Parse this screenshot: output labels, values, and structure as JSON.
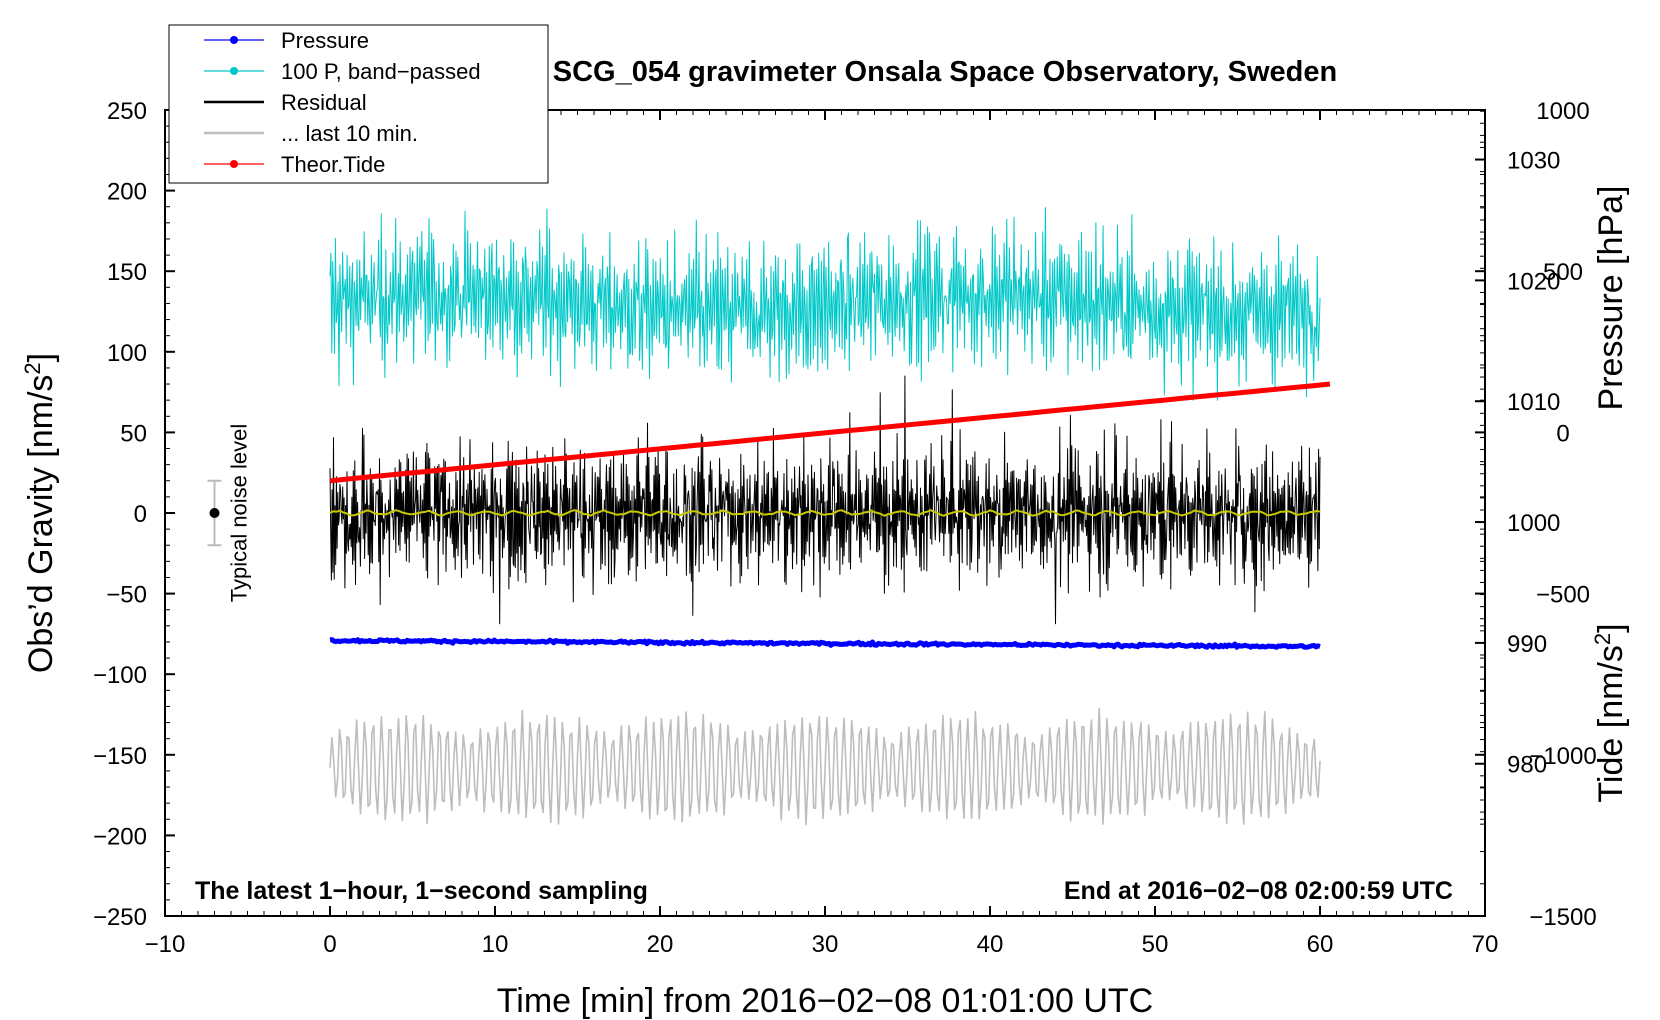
{
  "chart_data": {
    "type": "line",
    "title": "SCG_054 gravimeter Onsala Space Observatory, Sweden",
    "xlabel": "Time [min] from 2016−02−08 01:01:00 UTC",
    "ylabel": "Obs’d Gravity [nm/s²]",
    "ylabel_base": "Obs’d Gravity [nm/s",
    "ylabel_sup": "2",
    "ylabel_end": "]",
    "y2label": "Pressure [hPa]",
    "y3label_base": "Tide [nm/s",
    "y3label_sup": "2",
    "y3label_end": "]",
    "xlim": [
      -10,
      70
    ],
    "ylim": [
      -250,
      250
    ],
    "pressure_range": [
      967.4,
      1034.1
    ],
    "tide_range": [
      -1500,
      1000
    ],
    "x_ticks": [
      "−10",
      "0",
      "10",
      "20",
      "30",
      "40",
      "50",
      "60",
      "70"
    ],
    "x_tick_values": [
      -10,
      0,
      10,
      20,
      30,
      40,
      50,
      60,
      70
    ],
    "y_ticks": [
      "250",
      "200",
      "150",
      "100",
      "50",
      "0",
      "−50",
      "−100",
      "−150",
      "−200",
      "−250"
    ],
    "y_tick_values": [
      250,
      200,
      150,
      100,
      50,
      0,
      -50,
      -100,
      -150,
      -200,
      -250
    ],
    "pressure_ticks": [
      "1030",
      "1020",
      "1010",
      "1000",
      "990",
      "980"
    ],
    "pressure_tick_values": [
      1030,
      1020,
      1010,
      1000,
      990,
      980
    ],
    "tide_ticks": [
      "1000",
      "500",
      "0",
      "−500",
      "−1000",
      "−1500"
    ],
    "tide_tick_values": [
      1000,
      500,
      0,
      -500,
      -1000,
      -1500
    ],
    "annotation_left": "The latest 1−hour, 1−second sampling",
    "annotation_right": "End at 2016−02−08 02:00:59 UTC",
    "noise_label": "Typical noise level",
    "noise_bar": {
      "x": -7,
      "center": 0,
      "half_range": 20
    },
    "legend": [
      {
        "label": "Pressure",
        "color": "#0000ff",
        "marker": true
      },
      {
        "label": "100 P, band−passed",
        "color": "#00c8c8",
        "marker": true
      },
      {
        "label": "Residual",
        "color": "#000000",
        "marker": false
      },
      {
        "label": "... last 10 min.",
        "color": "#bdbdbd",
        "marker": false
      },
      {
        "label": "Theor.Tide",
        "color": "#ff0000",
        "marker": true
      }
    ],
    "series": [
      {
        "name": "Pressure",
        "color": "#0000ff",
        "axis": "pressure",
        "start_hpa": 990.2,
        "end_hpa": 989.7
      },
      {
        "name": "100 P, band−passed",
        "color": "#00c8c8",
        "axis": "gravity",
        "center": 130,
        "amplitude": 30
      },
      {
        "name": "Residual",
        "color": "#000000",
        "axis": "gravity",
        "center": 0,
        "amplitude": 30
      },
      {
        "name": "Residual smoothed",
        "color": "#c8c800",
        "axis": "gravity",
        "center": 0,
        "amplitude": 1.2
      },
      {
        "name": "... last 10 min.",
        "color": "#bdbdbd",
        "axis": "gravity",
        "center": -158,
        "amplitude": 30
      },
      {
        "name": "Theor.Tide",
        "color": "#ff0000",
        "axis": "tide",
        "start": -150,
        "end": 150
      }
    ],
    "x_range_data": [
      0,
      60
    ]
  }
}
